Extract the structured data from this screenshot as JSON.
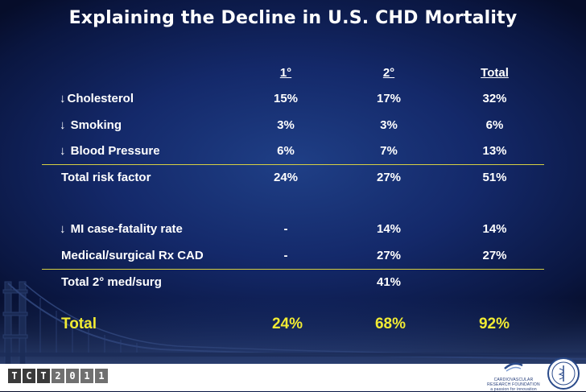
{
  "title": "Explaining the Decline in U.S. CHD Mortality",
  "headers": {
    "primary": "1°",
    "secondary": "2°",
    "total": "Total"
  },
  "arrow_symbol": "↓",
  "rows": [
    {
      "arrow": true,
      "label": "Cholesterol",
      "primary": "15%",
      "secondary": "17%",
      "total": "32%"
    },
    {
      "arrow": true,
      "label": "Smoking",
      "primary": "3%",
      "secondary": "3%",
      "total": "6%"
    },
    {
      "arrow": true,
      "label": "Blood Pressure",
      "primary": "6%",
      "secondary": "7%",
      "total": "13%"
    },
    {
      "arrow": false,
      "label": "Total risk factor",
      "primary": "24%",
      "secondary": "27%",
      "total": "51%"
    },
    {
      "arrow": true,
      "label": "MI case-fatality rate",
      "primary": "-",
      "secondary": "14%",
      "total": "14%"
    },
    {
      "arrow": false,
      "label": "Medical/surgical Rx CAD",
      "primary": "-",
      "secondary": "27%",
      "total": "27%"
    },
    {
      "arrow": false,
      "label": "Total 2° med/surg",
      "primary": "",
      "secondary": "41%",
      "total": ""
    }
  ],
  "grand_total": {
    "label": "Total",
    "primary": "24%",
    "secondary": "68%",
    "total": "92%"
  },
  "footer": {
    "tct_letters": [
      "T",
      "C",
      "T",
      "2",
      "0",
      "1",
      "1"
    ],
    "crf_text": "CARDIOVASCULAR RESEARCH FOUNDATION",
    "crf_tagline": "a passion for innovation"
  },
  "colors": {
    "accent_yellow": "#f1eb33",
    "rule": "#d6cf42",
    "background": "#14296a"
  }
}
